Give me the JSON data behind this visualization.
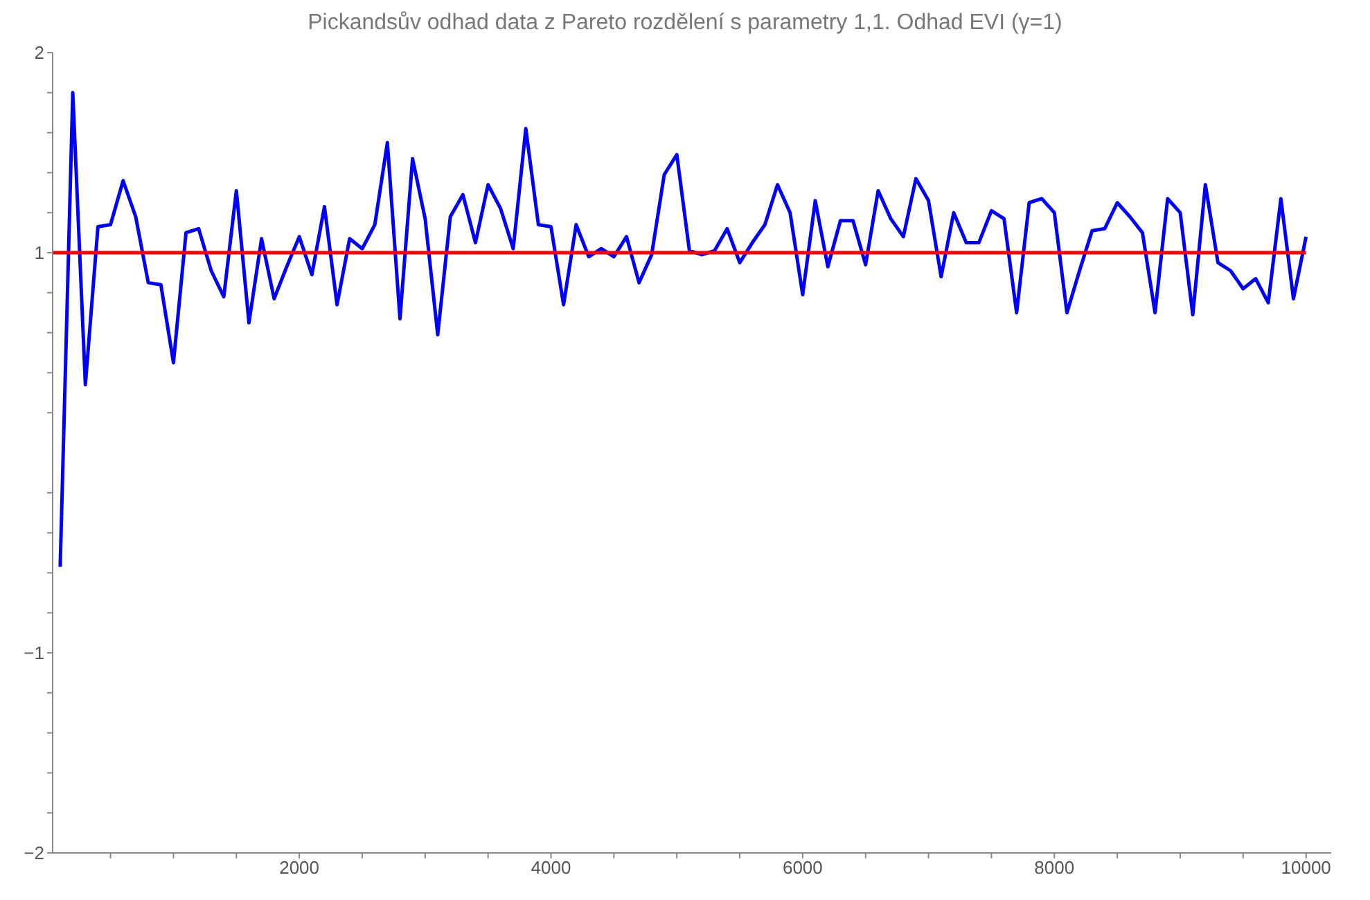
{
  "chart_data": {
    "type": "line",
    "title": "Pickandsův odhad data z Pareto rozdělení s parametry 1,1. Odhad EVI (γ=1)",
    "marker": "none",
    "line_style": "solid",
    "xlim": [
      40,
      10200
    ],
    "ylim": [
      -2,
      2
    ],
    "xticks": [
      {
        "value": 500,
        "label": null
      },
      {
        "value": 1000,
        "label": null
      },
      {
        "value": 1500,
        "label": null
      },
      2000,
      {
        "value": 2500,
        "label": null
      },
      {
        "value": 3000,
        "label": null
      },
      {
        "value": 3500,
        "label": null
      },
      4000,
      {
        "value": 4500,
        "label": null
      },
      {
        "value": 5000,
        "label": null
      },
      {
        "value": 5500,
        "label": null
      },
      6000,
      {
        "value": 6500,
        "label": null
      },
      {
        "value": 7000,
        "label": null
      },
      {
        "value": 7500,
        "label": null
      },
      8000,
      {
        "value": 8500,
        "label": null
      },
      {
        "value": 9000,
        "label": null
      },
      {
        "value": 9500,
        "label": null
      },
      10000
    ],
    "yticks": [
      {
        "value": -2,
        "label": "−2"
      },
      {
        "value": -1.8,
        "label": null
      },
      {
        "value": -1.6,
        "label": null
      },
      {
        "value": -1.4,
        "label": null
      },
      {
        "value": -1.2,
        "label": null
      },
      {
        "value": -1,
        "label": "−1"
      },
      {
        "value": -0.8,
        "label": null
      },
      {
        "value": -0.6,
        "label": null
      },
      {
        "value": -0.4,
        "label": null
      },
      {
        "value": -0.2,
        "label": null
      },
      {
        "value": 0.2,
        "label": null
      },
      {
        "value": 0.4,
        "label": null
      },
      {
        "value": 0.6,
        "label": null
      },
      {
        "value": 0.8,
        "label": null
      },
      1,
      {
        "value": 1.2,
        "label": null
      },
      {
        "value": 1.4,
        "label": null
      },
      {
        "value": 1.6,
        "label": null
      },
      {
        "value": 1.8,
        "label": null
      },
      2
    ],
    "series": [
      {
        "type": "line",
        "color": "#0000ff",
        "x": [
          100,
          200,
          300,
          400,
          500,
          600,
          700,
          800,
          900,
          1000,
          1100,
          1200,
          1300,
          1400,
          1500,
          1600,
          1700,
          1800,
          1900,
          2000,
          2100,
          2200,
          2300,
          2400,
          2500,
          2600,
          2700,
          2800,
          2900,
          3000,
          3100,
          3200,
          3300,
          3400,
          3500,
          3600,
          3700,
          3800,
          3900,
          4000,
          4100,
          4200,
          4300,
          4400,
          4500,
          4600,
          4700,
          4800,
          4900,
          5000,
          5100,
          5200,
          5300,
          5400,
          5500,
          5600,
          5700,
          5800,
          5900,
          6000,
          6100,
          6200,
          6300,
          6400,
          6500,
          6600,
          6700,
          6800,
          6900,
          7000,
          7100,
          7200,
          7300,
          7400,
          7500,
          7600,
          7700,
          7800,
          7900,
          8000,
          8100,
          8200,
          8300,
          8400,
          8500,
          8600,
          8700,
          8800,
          8900,
          9000,
          9100,
          9200,
          9300,
          9400,
          9500,
          9600,
          9700,
          9800,
          9900,
          10000
        ],
        "values": [
          -0.57,
          1.8,
          0.34,
          1.13,
          1.14,
          1.36,
          1.18,
          0.85,
          0.84,
          0.45,
          1.1,
          1.12,
          0.91,
          0.78,
          1.31,
          0.65,
          1.07,
          0.77,
          0.93,
          1.08,
          0.89,
          1.23,
          0.74,
          1.07,
          1.02,
          1.14,
          1.55,
          0.67,
          1.47,
          1.17,
          0.59,
          1.18,
          1.29,
          1.05,
          1.34,
          1.22,
          1.02,
          1.62,
          1.14,
          1.13,
          0.74,
          1.14,
          0.98,
          1.02,
          0.98,
          1.08,
          0.85,
          0.99,
          1.39,
          1.49,
          1.01,
          0.99,
          1.01,
          1.12,
          0.95,
          1.05,
          1.14,
          1.34,
          1.2,
          0.79,
          1.26,
          0.93,
          1.16,
          1.16,
          0.94,
          1.31,
          1.17,
          1.08,
          1.37,
          1.26,
          0.88,
          1.2,
          1.05,
          1.05,
          1.21,
          1.17,
          0.7,
          1.25,
          1.27,
          1.2,
          0.7,
          0.91,
          1.11,
          1.12,
          1.25,
          1.18,
          1.1,
          0.7,
          1.27,
          1.2,
          0.69,
          1.34,
          0.95,
          0.91,
          0.82,
          0.87,
          0.75,
          1.27,
          0.77,
          1.08
        ]
      },
      {
        "type": "line",
        "color": "#ff0000",
        "x": [
          40,
          10000
        ],
        "values": [
          1,
          1
        ]
      }
    ]
  }
}
